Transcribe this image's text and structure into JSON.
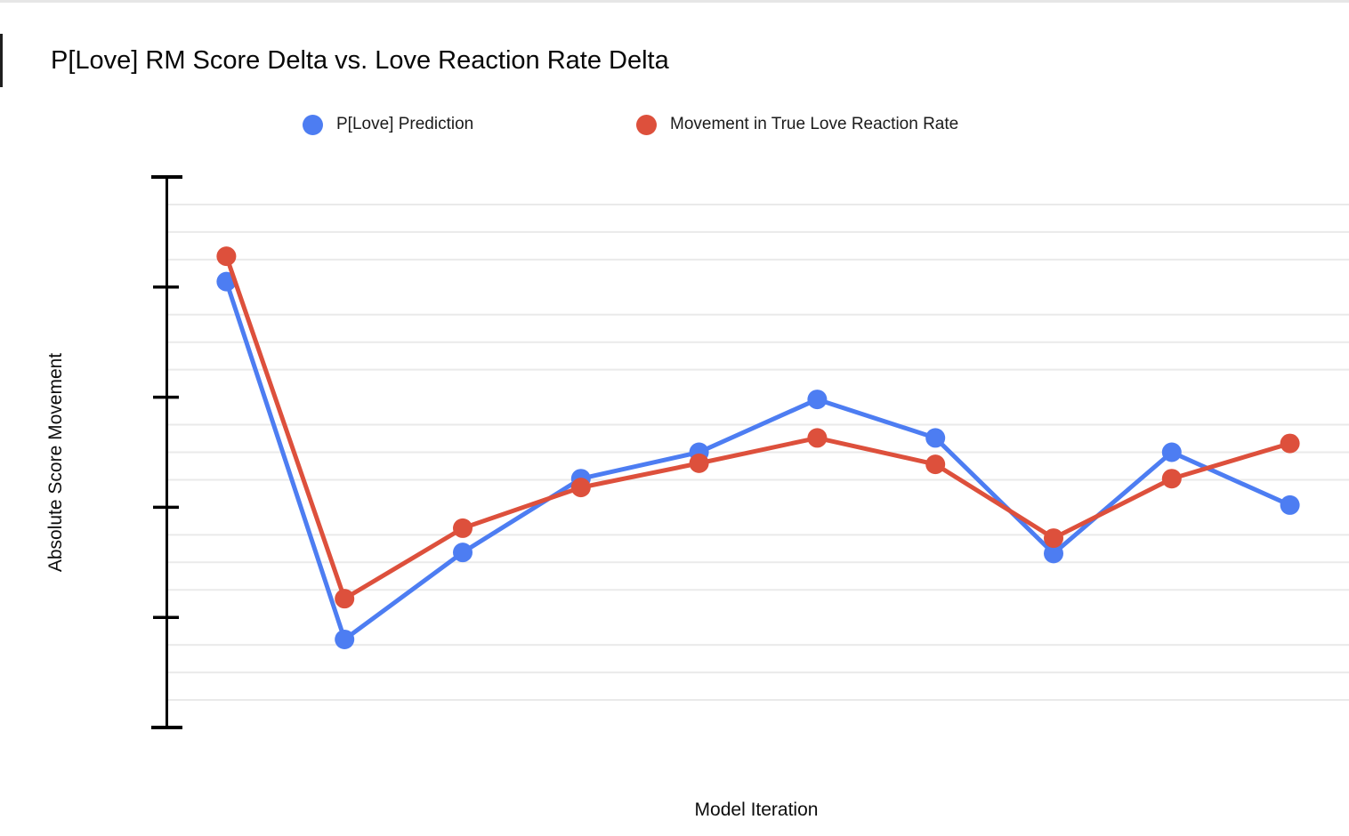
{
  "chart_data": {
    "type": "line",
    "title": "P[Love] RM Score Delta vs. Love Reaction Rate Delta",
    "xlabel": "Model Iteration",
    "ylabel": "Absolute Score Movement",
    "x": [
      1,
      2,
      3,
      4,
      5,
      6,
      7,
      8,
      9,
      10
    ],
    "x_tick_labels_visible": false,
    "y_tick_labels_visible": false,
    "ylim": [
      0,
      5
    ],
    "y_major_tick_step": 1,
    "y_minor_grid_step": 0.25,
    "grid": "light horizontal minor gridlines only; y-axis drawn with tick marks, no numeric labels",
    "legend_position": "top",
    "marker": "circle",
    "series": [
      {
        "name": "P[Love] Prediction",
        "color": "#4D7DF2",
        "values": [
          4.05,
          0.8,
          1.59,
          2.26,
          2.5,
          2.98,
          2.63,
          1.58,
          2.5,
          2.02
        ]
      },
      {
        "name": "Movement in True Love Reaction Rate",
        "color": "#DD503C",
        "values": [
          4.28,
          1.17,
          1.81,
          2.18,
          2.4,
          2.63,
          2.39,
          1.72,
          2.26,
          2.58
        ]
      }
    ]
  },
  "decorations": {
    "top_border_color": "#e6e6e6",
    "left_edge_mark_color": "#1f1f1f",
    "gridline_color": "#eaeaea",
    "axis_color": "#000000"
  }
}
